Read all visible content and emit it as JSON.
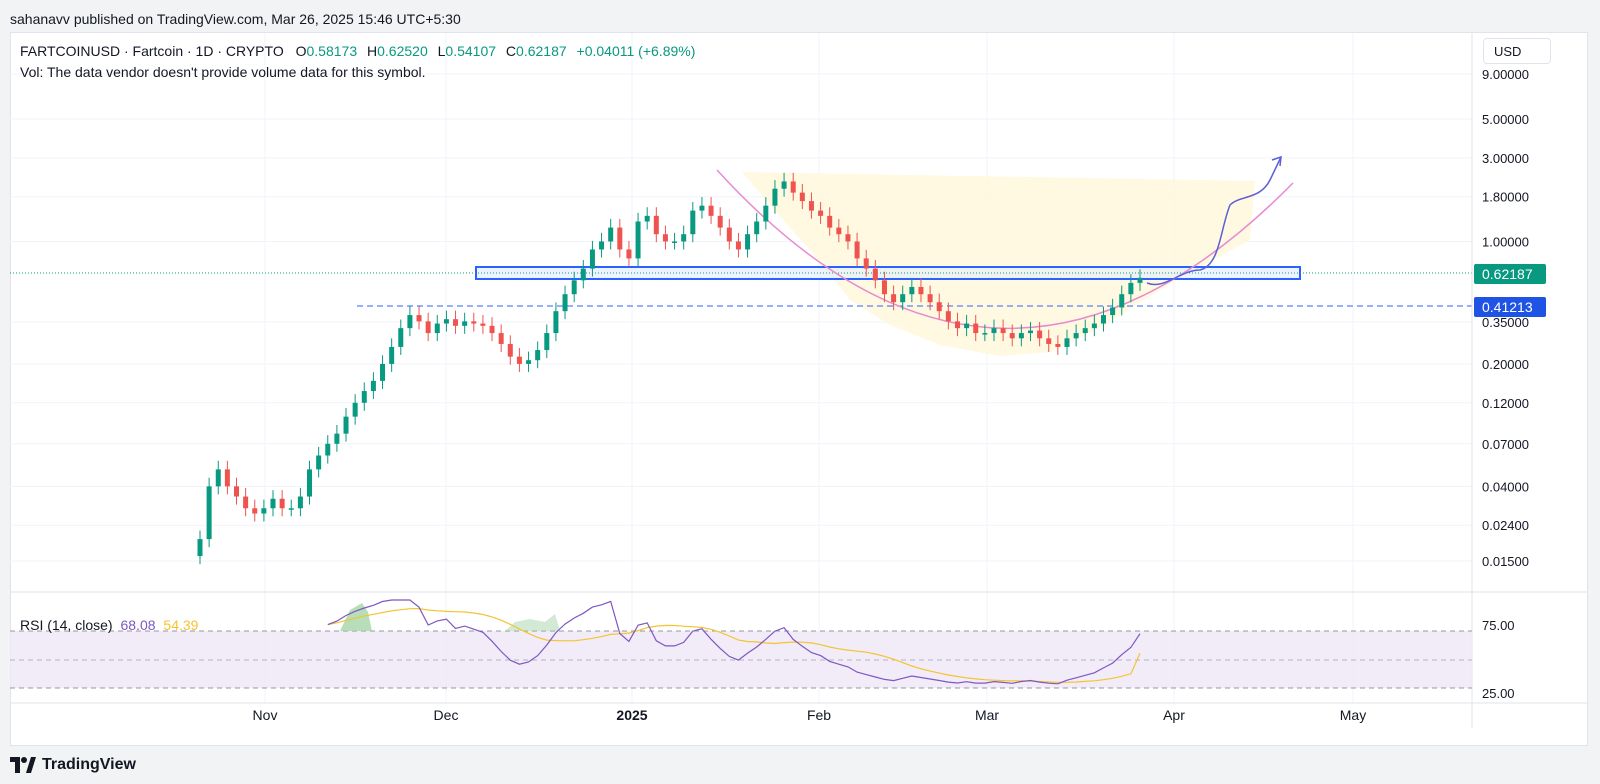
{
  "header": {
    "published": "sahanavv published on TradingView.com, Mar 26, 2025 15:46 UTC+5:30"
  },
  "legend": {
    "symbol": "FARTCOINUSD · Fartcoin · 1D · CRYPTO",
    "o_label": "O",
    "o_value": "0.58173",
    "h_label": "H",
    "h_value": "0.62520",
    "l_label": "L",
    "l_value": "0.54107",
    "c_label": "C",
    "c_value": "0.62187",
    "change": "+0.04011 (+6.89%)",
    "volume_note": "Vol: The data vendor doesn't provide volume data for this symbol."
  },
  "currency": "USD",
  "rsi_legend": {
    "label": "RSI (14, close)",
    "value": "68.08",
    "ma_value": "54.39"
  },
  "branding": {
    "logo_text": "TradingView"
  },
  "colors": {
    "up": "#089981",
    "down": "#ef5350",
    "rsi": "#7e57c2",
    "rsi_ma": "#f4c430",
    "accent": "#2962ff"
  },
  "chart_data": [
    {
      "type": "candlestick",
      "symbol": "FARTCOINUSD",
      "interval": "1D",
      "y_scale": "log",
      "y_ticks": [
        "9.00000",
        "5.00000",
        "3.00000",
        "1.80000",
        "1.00000",
        "0.35000",
        "0.20000",
        "0.12000",
        "0.07000",
        "0.04000",
        "0.02400",
        "0.01500"
      ],
      "x_ticks": [
        "Nov",
        "Dec",
        "2025",
        "Feb",
        "Mar",
        "Apr",
        "May"
      ],
      "price_labels": {
        "current": "0.62187",
        "dashed_level": "0.41213"
      },
      "daily_close_approx": [
        0.02,
        0.04,
        0.05,
        0.04,
        0.035,
        0.03,
        0.028,
        0.03,
        0.034,
        0.03,
        0.03,
        0.035,
        0.05,
        0.06,
        0.07,
        0.08,
        0.1,
        0.12,
        0.14,
        0.16,
        0.2,
        0.25,
        0.32,
        0.38,
        0.35,
        0.3,
        0.34,
        0.36,
        0.33,
        0.35,
        0.34,
        0.33,
        0.3,
        0.26,
        0.22,
        0.2,
        0.21,
        0.24,
        0.3,
        0.4,
        0.5,
        0.6,
        0.7,
        0.9,
        1.0,
        1.2,
        0.9,
        0.8,
        1.3,
        1.4,
        1.1,
        1.0,
        1.0,
        1.1,
        1.5,
        1.6,
        1.4,
        1.2,
        1.0,
        0.9,
        1.1,
        1.3,
        1.6,
        2.0,
        2.2,
        1.9,
        1.7,
        1.5,
        1.4,
        1.2,
        1.1,
        1.0,
        0.8,
        0.7,
        0.6,
        0.5,
        0.45,
        0.5,
        0.55,
        0.5,
        0.45,
        0.4,
        0.35,
        0.32,
        0.34,
        0.3,
        0.3,
        0.32,
        0.3,
        0.28,
        0.3,
        0.31,
        0.28,
        0.26,
        0.25,
        0.28,
        0.3,
        0.32,
        0.34,
        0.38,
        0.42,
        0.5,
        0.58,
        0.62
      ]
    },
    {
      "type": "line",
      "name": "RSI (14, close)",
      "y_ticks": [
        "75.00",
        "25.00"
      ],
      "levels": [
        70,
        50,
        30
      ],
      "rsi_last": 68.08,
      "rsi_ma_last": 54.39
    }
  ]
}
